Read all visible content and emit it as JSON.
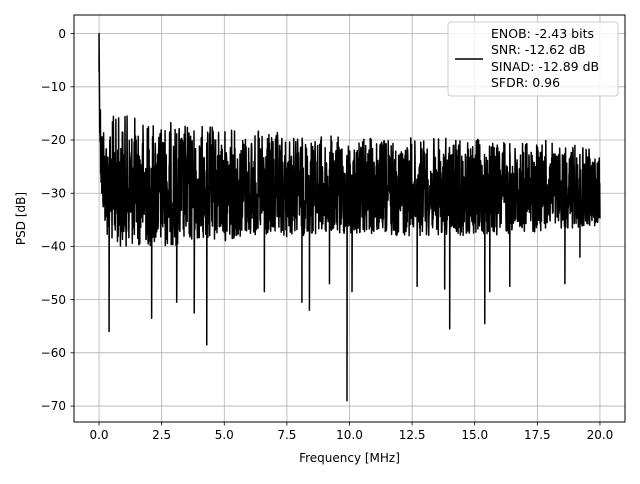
{
  "chart_data": {
    "type": "line",
    "title": "",
    "xlabel": "Frequency [MHz]",
    "ylabel": "PSD [dB]",
    "xlim": [
      -1.0,
      21.0
    ],
    "ylim": [
      -73.0,
      3.5
    ],
    "xticks": [
      0.0,
      2.5,
      5.0,
      7.5,
      10.0,
      12.5,
      15.0,
      17.5,
      20.0
    ],
    "xtick_labels": [
      "0.0",
      "2.5",
      "5.0",
      "7.5",
      "10.0",
      "12.5",
      "15.0",
      "17.5",
      "20.0"
    ],
    "yticks": [
      0,
      -10,
      -20,
      -30,
      -40,
      -50,
      -60,
      -70
    ],
    "ytick_labels": [
      "0",
      "−10",
      "−20",
      "−30",
      "−40",
      "−50",
      "−60",
      "−70"
    ],
    "grid": true,
    "legend_position": "top-right",
    "series": [
      {
        "color": "#000000",
        "legend_lines": [
          "ENOB: -2.43 bits",
          "SNR: -12.62 dB",
          "SINAD: -12.89 dB",
          "SFDR: 0.96"
        ],
        "x_range": [
          0.0,
          20.0
        ],
        "envelope": {
          "x": [
            0.0,
            0.05,
            0.1,
            0.3,
            0.6,
            1.0,
            2.0,
            3.0,
            4.0,
            5.0,
            6.0,
            7.0,
            8.0,
            9.0,
            10.0,
            12.0,
            14.0,
            16.0,
            18.0,
            20.0
          ],
          "top": [
            0.0,
            -10.0,
            -14.0,
            -17.0,
            -15.0,
            -15.0,
            -16.0,
            -16.5,
            -17.0,
            -17.5,
            -18.0,
            -18.5,
            -19.0,
            -19.0,
            -19.5,
            -19.5,
            -19.5,
            -20.0,
            -20.0,
            -22.0
          ],
          "low": [
            -10.0,
            -26.0,
            -33.0,
            -38.0,
            -40.0,
            -40.0,
            -40.0,
            -40.0,
            -39.0,
            -39.0,
            -38.0,
            -39.0,
            -38.0,
            -38.0,
            -38.0,
            -38.0,
            -38.0,
            -38.0,
            -37.0,
            -36.0
          ]
        },
        "notable_points": [
          {
            "x": 0.0,
            "y": 0.0
          },
          {
            "x": 0.4,
            "y": -56.0
          },
          {
            "x": 2.1,
            "y": -53.5
          },
          {
            "x": 3.1,
            "y": -50.5
          },
          {
            "x": 3.8,
            "y": -52.5
          },
          {
            "x": 4.3,
            "y": -58.5
          },
          {
            "x": 6.6,
            "y": -48.5
          },
          {
            "x": 8.1,
            "y": -50.5
          },
          {
            "x": 8.4,
            "y": -52.0
          },
          {
            "x": 9.2,
            "y": -47.0
          },
          {
            "x": 9.9,
            "y": -69.0
          },
          {
            "x": 10.1,
            "y": -48.5
          },
          {
            "x": 12.7,
            "y": -47.5
          },
          {
            "x": 13.8,
            "y": -48.0
          },
          {
            "x": 14.0,
            "y": -55.5
          },
          {
            "x": 15.4,
            "y": -54.5
          },
          {
            "x": 15.6,
            "y": -48.5
          },
          {
            "x": 16.4,
            "y": -47.5
          },
          {
            "x": 18.6,
            "y": -47.0
          },
          {
            "x": 19.2,
            "y": -42.0
          }
        ]
      }
    ]
  }
}
